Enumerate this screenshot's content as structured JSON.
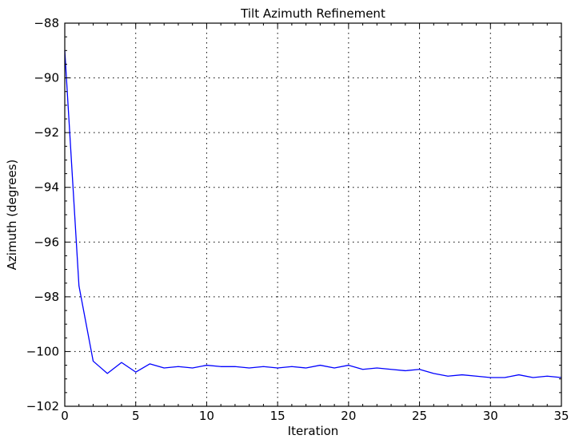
{
  "chart_data": {
    "type": "line",
    "title": "Tilt Azimuth Refinement",
    "xlabel": "Iteration",
    "ylabel": "Azimuth (degrees)",
    "xlim": [
      0,
      35
    ],
    "ylim": [
      -102,
      -88
    ],
    "xticks": [
      0,
      5,
      10,
      15,
      20,
      25,
      30,
      35
    ],
    "xtick_labels": [
      "0",
      "5",
      "10",
      "15",
      "20",
      "25",
      "30",
      "35"
    ],
    "yticks": [
      -88,
      -90,
      -92,
      -94,
      -96,
      -98,
      -100,
      -102
    ],
    "ytick_labels": [
      "−88",
      "−90",
      "−92",
      "−94",
      "−96",
      "−98",
      "−100",
      "−102"
    ],
    "grid": true,
    "series": [
      {
        "color": "#0000ff",
        "x": [
          0,
          1,
          2,
          3,
          4,
          5,
          6,
          7,
          8,
          9,
          10,
          11,
          12,
          13,
          14,
          15,
          16,
          17,
          18,
          19,
          20,
          21,
          22,
          23,
          24,
          25,
          26,
          27,
          28,
          29,
          30,
          31,
          32,
          33,
          34,
          35
        ],
        "y": [
          -89.0,
          -97.6,
          -100.35,
          -100.8,
          -100.4,
          -100.75,
          -100.45,
          -100.6,
          -100.55,
          -100.6,
          -100.5,
          -100.55,
          -100.55,
          -100.6,
          -100.55,
          -100.6,
          -100.55,
          -100.6,
          -100.5,
          -100.6,
          -100.5,
          -100.65,
          -100.6,
          -100.65,
          -100.7,
          -100.65,
          -100.8,
          -100.9,
          -100.85,
          -100.9,
          -100.95,
          -100.95,
          -100.85,
          -100.95,
          -100.9,
          -100.95
        ]
      }
    ]
  }
}
